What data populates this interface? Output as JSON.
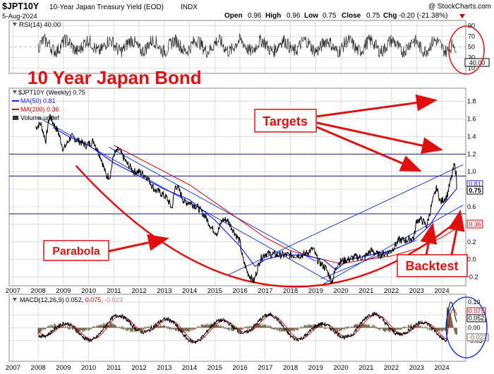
{
  "header": {
    "symbol": "$JPT10Y",
    "name": "10-Year Japan Treasury Yield (EOD)",
    "exchange": "INDX",
    "date": "5-Aug-2024",
    "copyright": "@ StockCharts.com",
    "open_label": "Open",
    "open": "0.96",
    "high_label": "High",
    "high": "0.96",
    "low_label": "Low",
    "low": "0.75",
    "close_label": "Close",
    "close": "0.75",
    "chg_label": "Chg",
    "chg": "-0.20 (-21.38%)"
  },
  "colors": {
    "price_line": "#000000",
    "ma50": "#1a1aff",
    "ma200": "#cc0000",
    "trendline": "#1f3fcf",
    "annotation": "#e01010",
    "hist": "#7a6a50",
    "grid": "#c8c8c8"
  },
  "rsi_panel": {
    "legend": "RSI(14) 40.00",
    "current": "40.00",
    "levels": [
      "90",
      "70",
      "50",
      "30",
      "10"
    ]
  },
  "price_panel": {
    "legend_symbol": "$JPT10Y (Weekly) 0.75",
    "legend_ma50": "MA(50) 0.81",
    "legend_ma200": "MA(200) 0.36",
    "legend_volume": "Volume undef",
    "axis_labels": [
      "1.8",
      "1.6",
      "1.4",
      "1.2",
      "1.0",
      "0.8",
      "0.6",
      "0.4",
      "0.2",
      "0.0",
      "-0.2"
    ],
    "marker_ma50": "0.81",
    "marker_close": "0.75",
    "marker_ma200": "0.36"
  },
  "annotations": {
    "title": "10 Year Japan Bond",
    "targets": "Targets",
    "parabola": "Parabola",
    "backtest": "Backtest"
  },
  "macd_panel": {
    "legend_name": "MACD(12,26,9)",
    "legend_v1": "0.052,",
    "legend_v2": "0.075,",
    "legend_v3": "-0.023",
    "axis_labels": [
      "0.10",
      "0.05",
      "0.00",
      "-0.05"
    ],
    "marker_signal": "0.075",
    "marker_macd": "0.052",
    "marker_hist": "-0.023"
  },
  "years": [
    "2007",
    "2008",
    "2009",
    "2010",
    "2011",
    "2012",
    "2013",
    "2014",
    "2015",
    "2016",
    "2017",
    "2018",
    "2019",
    "2020",
    "2021",
    "2022",
    "2023",
    "2024"
  ],
  "chart_data": {
    "type": "line",
    "title": "10-Year Japan Treasury Yield (EOD)",
    "x_unit": "year",
    "y_unit": "yield %",
    "ylim": [
      -0.3,
      1.95
    ],
    "series": [
      {
        "name": "$JPT10Y",
        "points": [
          [
            2007.9,
            1.5
          ],
          [
            2008.1,
            1.55
          ],
          [
            2008.3,
            1.35
          ],
          [
            2008.45,
            1.65
          ],
          [
            2008.6,
            1.55
          ],
          [
            2008.8,
            1.45
          ],
          [
            2009.0,
            1.25
          ],
          [
            2009.3,
            1.4
          ],
          [
            2009.6,
            1.35
          ],
          [
            2009.9,
            1.3
          ],
          [
            2010.2,
            1.35
          ],
          [
            2010.5,
            1.15
          ],
          [
            2010.7,
            0.95
          ],
          [
            2010.85,
            0.95
          ],
          [
            2011.0,
            1.2
          ],
          [
            2011.2,
            1.25
          ],
          [
            2011.5,
            1.1
          ],
          [
            2011.8,
            1.0
          ],
          [
            2012.0,
            1.0
          ],
          [
            2012.3,
            0.95
          ],
          [
            2012.6,
            0.8
          ],
          [
            2012.9,
            0.75
          ],
          [
            2013.1,
            0.7
          ],
          [
            2013.3,
            0.58
          ],
          [
            2013.45,
            0.85
          ],
          [
            2013.6,
            0.78
          ],
          [
            2013.8,
            0.65
          ],
          [
            2014.0,
            0.65
          ],
          [
            2014.3,
            0.6
          ],
          [
            2014.6,
            0.5
          ],
          [
            2014.9,
            0.35
          ],
          [
            2015.1,
            0.3
          ],
          [
            2015.3,
            0.45
          ],
          [
            2015.5,
            0.45
          ],
          [
            2015.8,
            0.3
          ],
          [
            2016.0,
            0.2
          ],
          [
            2016.1,
            0.02
          ],
          [
            2016.3,
            -0.15
          ],
          [
            2016.55,
            -0.25
          ],
          [
            2016.8,
            0.0
          ],
          [
            2017.0,
            0.07
          ],
          [
            2017.5,
            0.05
          ],
          [
            2018.0,
            0.05
          ],
          [
            2018.5,
            0.05
          ],
          [
            2018.9,
            0.12
          ],
          [
            2019.1,
            -0.02
          ],
          [
            2019.4,
            -0.1
          ],
          [
            2019.65,
            -0.25
          ],
          [
            2019.85,
            -0.05
          ],
          [
            2020.0,
            -0.02
          ],
          [
            2020.3,
            0.0
          ],
          [
            2020.6,
            0.03
          ],
          [
            2020.9,
            0.02
          ],
          [
            2021.2,
            0.1
          ],
          [
            2021.5,
            0.05
          ],
          [
            2021.8,
            0.07
          ],
          [
            2022.0,
            0.1
          ],
          [
            2022.3,
            0.22
          ],
          [
            2022.6,
            0.22
          ],
          [
            2022.9,
            0.25
          ],
          [
            2023.0,
            0.45
          ],
          [
            2023.2,
            0.45
          ],
          [
            2023.4,
            0.38
          ],
          [
            2023.6,
            0.62
          ],
          [
            2023.8,
            0.82
          ],
          [
            2023.95,
            0.65
          ],
          [
            2024.2,
            0.72
          ],
          [
            2024.4,
            0.95
          ],
          [
            2024.5,
            1.08
          ],
          [
            2024.58,
            0.96
          ],
          [
            2024.6,
            0.75
          ]
        ]
      },
      {
        "name": "MA(50)",
        "points": [
          [
            2008.6,
            1.5
          ],
          [
            2009.2,
            1.4
          ],
          [
            2010.0,
            1.3
          ],
          [
            2011.0,
            1.1
          ],
          [
            2012.0,
            0.95
          ],
          [
            2013.0,
            0.8
          ],
          [
            2014.0,
            0.68
          ],
          [
            2015.0,
            0.45
          ],
          [
            2016.0,
            0.15
          ],
          [
            2016.6,
            -0.08
          ],
          [
            2017.0,
            0.0
          ],
          [
            2017.7,
            0.05
          ],
          [
            2018.5,
            0.05
          ],
          [
            2019.3,
            0.0
          ],
          [
            2019.8,
            -0.12
          ],
          [
            2020.3,
            0.0
          ],
          [
            2021.0,
            0.04
          ],
          [
            2022.0,
            0.1
          ],
          [
            2022.8,
            0.2
          ],
          [
            2023.5,
            0.38
          ],
          [
            2024.0,
            0.6
          ],
          [
            2024.6,
            0.81
          ]
        ]
      },
      {
        "name": "MA(200)",
        "points": [
          [
            2011.0,
            1.3
          ],
          [
            2012.0,
            1.15
          ],
          [
            2013.0,
            1.0
          ],
          [
            2014.0,
            0.85
          ],
          [
            2015.0,
            0.65
          ],
          [
            2016.0,
            0.45
          ],
          [
            2017.0,
            0.25
          ],
          [
            2018.0,
            0.1
          ],
          [
            2019.0,
            0.02
          ],
          [
            2020.0,
            -0.05
          ],
          [
            2021.0,
            0.0
          ],
          [
            2022.0,
            0.04
          ],
          [
            2023.0,
            0.12
          ],
          [
            2024.0,
            0.25
          ],
          [
            2024.6,
            0.36
          ]
        ]
      }
    ]
  }
}
